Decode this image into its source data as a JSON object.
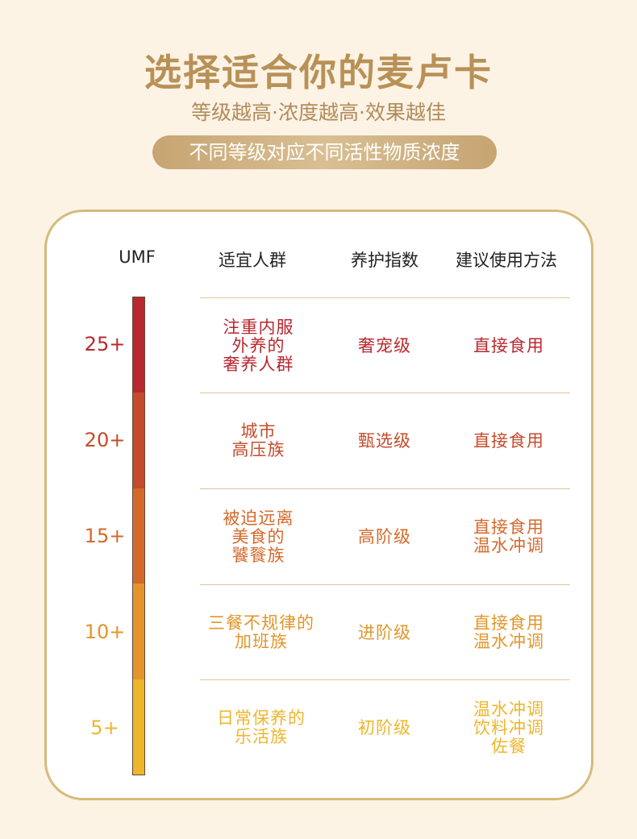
{
  "title": "选择适合你的麦卢卡",
  "subtitle": "等级越高·浓度越高·效果越佳",
  "pill_text": "不同等级对应不同活性物质浓度",
  "table": {
    "headers": [
      "UMF",
      "适宜人群",
      "养护指数",
      "建议使用方法"
    ],
    "rows": [
      {
        "umf": "25+",
        "people": "注重内服\n外养的\n奢养人群",
        "level": "奢宠级",
        "method": "直接食用",
        "color": "#b8282e"
      },
      {
        "umf": "20+",
        "people": "城市\n高压族",
        "level": "甄选级",
        "method": "直接食用",
        "color": "#c44b2c"
      },
      {
        "umf": "15+",
        "people": "被迫远离\n美食的\n饕餮族",
        "level": "高阶级",
        "method": "直接食用\n温水冲调",
        "color": "#d4692c"
      },
      {
        "umf": "10+",
        "people": "三餐不规律的\n加班族",
        "level": "进阶级",
        "method": "直接食用\n温水冲调",
        "color": "#e3952b"
      },
      {
        "umf": "5+",
        "people": "日常保养的\n乐活族",
        "level": "初阶级",
        "method": "温水冲调\n饮料冲调\n佐餐",
        "color": "#edb62b"
      }
    ]
  }
}
